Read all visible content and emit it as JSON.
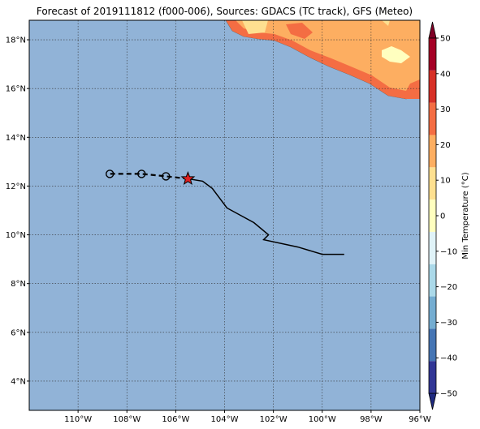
{
  "title": "Forecast of 2019111812 (f000-006), Sources: GDACS (TC track), GFS (Meteo)",
  "map": {
    "lon_range": [
      -112,
      -96
    ],
    "lat_range": [
      2.8,
      18.8
    ],
    "lon_ticks": [
      -110,
      -108,
      -106,
      -104,
      -102,
      -100,
      -98,
      -96
    ],
    "lat_ticks": [
      4,
      6,
      8,
      10,
      12,
      14,
      16,
      18
    ],
    "lon_tick_labels": [
      "110°W",
      "108°W",
      "106°W",
      "104°W",
      "102°W",
      "100°W",
      "98°W",
      "96°W"
    ],
    "lat_tick_labels": [
      "4°N",
      "6°N",
      "8°N",
      "10°N",
      "12°N",
      "14°N",
      "16°N",
      "18°N"
    ],
    "gridlines": true,
    "ocean_color": "#91b3d7"
  },
  "track": {
    "past": [
      [
        -99.1,
        9.2
      ],
      [
        -100.0,
        9.2
      ],
      [
        -101.0,
        9.5
      ],
      [
        -102.4,
        9.8
      ],
      [
        -102.2,
        10.0
      ],
      [
        -102.8,
        10.5
      ],
      [
        -103.9,
        11.1
      ],
      [
        -104.5,
        11.9
      ],
      [
        -104.9,
        12.2
      ],
      [
        -105.5,
        12.3
      ]
    ],
    "current": [
      -105.5,
      12.3
    ],
    "forecast": [
      [
        -105.5,
        12.3
      ],
      [
        -106.4,
        12.4
      ],
      [
        -107.4,
        12.5
      ],
      [
        -108.7,
        12.5
      ]
    ],
    "forecast_points": [
      [
        -106.4,
        12.4
      ],
      [
        -107.4,
        12.5
      ],
      [
        -108.7,
        12.5
      ]
    ],
    "current_marker_color": "#e02020"
  },
  "colorbar": {
    "label": "Min Temperature (°C)",
    "levels": [
      -50,
      -40,
      -30,
      -20,
      -10,
      0,
      10,
      20,
      30,
      40,
      50
    ],
    "tick_labels": [
      "−50",
      "−40",
      "−30",
      "−20",
      "−10",
      "0",
      "10",
      "20",
      "30",
      "40",
      "50"
    ],
    "colors": [
      "#313695",
      "#4575b4",
      "#74add1",
      "#abd9e9",
      "#e0f3f8",
      "#ffffbf",
      "#fee090",
      "#fdae61",
      "#f46d43",
      "#d73027",
      "#a50026"
    ],
    "under_color": "#1f2a80",
    "over_color": "#800026"
  },
  "land_colors": {
    "warm": "#fdae61",
    "hot": "#f46d43",
    "mild": "#fee090",
    "cool": "#ffffbf"
  }
}
